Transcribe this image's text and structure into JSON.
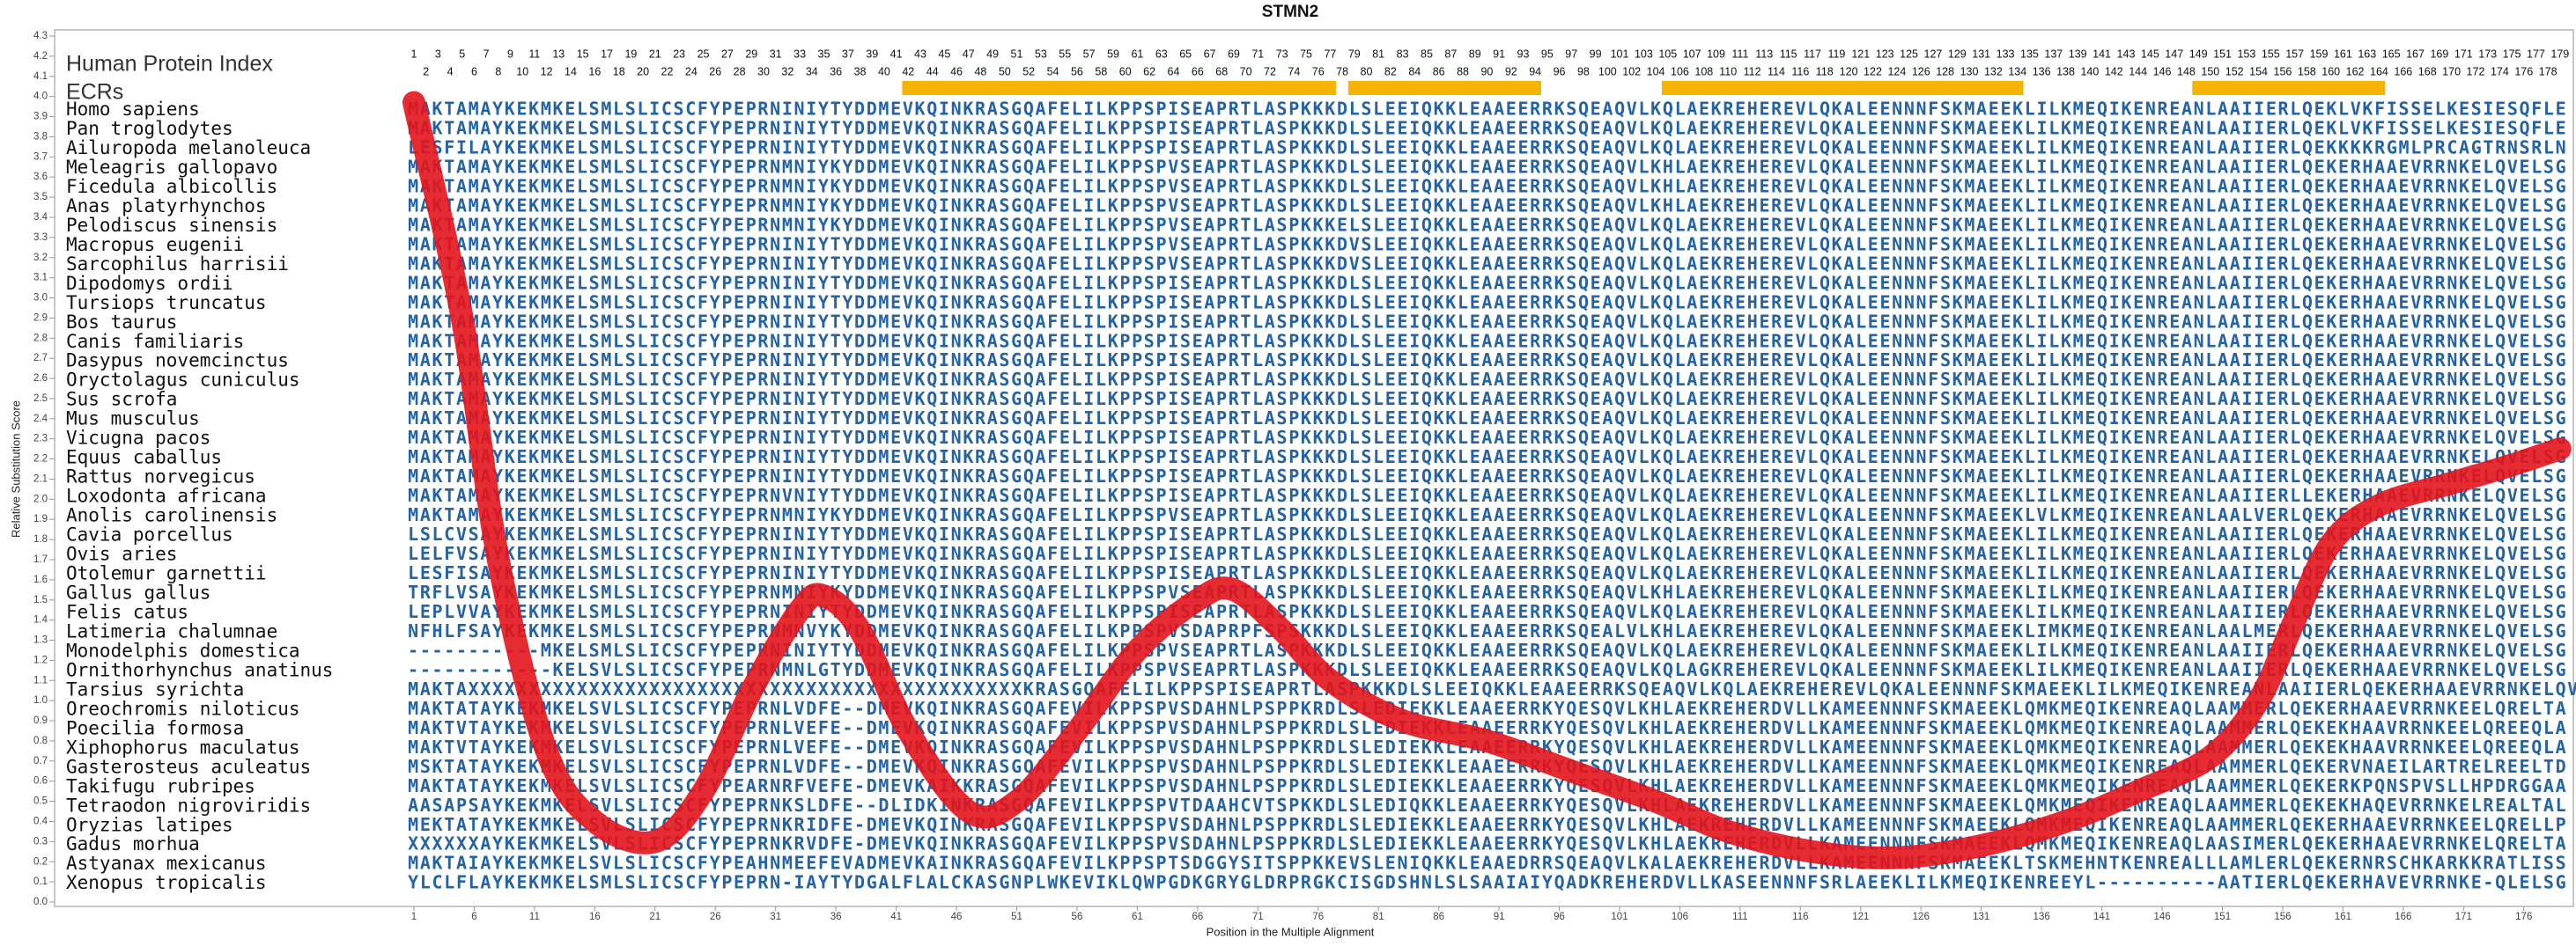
{
  "chart_data": {
    "type": "line",
    "title": "STMN2",
    "ylabel": "Relative Substitution Score",
    "xlabel": "Position in the Multiple Alignment",
    "ylim": [
      0,
      4.3
    ],
    "yticks": [
      {
        "value": 0,
        "label": "0.0"
      },
      0.1,
      0.2,
      0.3,
      0.4,
      0.5,
      0.6,
      0.7,
      0.8,
      0.9,
      {
        "value": 1,
        "label": "1.0"
      },
      1.1,
      1.2,
      1.3,
      1.4,
      1.5,
      1.6,
      1.7,
      1.8,
      1.9,
      {
        "value": 2,
        "label": "2.0"
      },
      2.1,
      2.2,
      2.3,
      2.4,
      2.5,
      2.6,
      2.7,
      2.8,
      2.9,
      {
        "value": 3,
        "label": "3.0"
      },
      3.1,
      3.2,
      3.3,
      3.4,
      3.5,
      3.6,
      3.7,
      3.8,
      3.9,
      {
        "value": 4,
        "label": "4.0"
      },
      4.1,
      4.2,
      4.3
    ],
    "xlim": [
      1,
      179
    ],
    "xticks": [
      1,
      6,
      11,
      16,
      21,
      26,
      31,
      36,
      41,
      46,
      51,
      56,
      61,
      66,
      71,
      76,
      81,
      86,
      91,
      96,
      101,
      106,
      111,
      116,
      121,
      126,
      131,
      136,
      141,
      146,
      151,
      156,
      161,
      166,
      171,
      176
    ],
    "series": [
      {
        "color": "#e3141c",
        "x": [
          1,
          5,
          8,
          12,
          16,
          21,
          25,
          29,
          33,
          35,
          38,
          42,
          47,
          51,
          56,
          61,
          66,
          69,
          73,
          77,
          83,
          90,
          97,
          104,
          110,
          117,
          124,
          131,
          138,
          144,
          150,
          154,
          157,
          160,
          164,
          170,
          175,
          179
        ],
        "values": [
          3.97,
          2.9,
          1.7,
          0.75,
          0.4,
          0.3,
          0.55,
          1.05,
          1.45,
          1.52,
          1.35,
          0.85,
          0.45,
          0.5,
          0.85,
          1.25,
          1.5,
          1.55,
          1.35,
          1.1,
          0.9,
          0.8,
          0.65,
          0.5,
          0.35,
          0.25,
          0.22,
          0.28,
          0.4,
          0.55,
          0.72,
          1.0,
          1.4,
          1.78,
          1.97,
          2.08,
          2.17,
          2.25
        ]
      }
    ],
    "alignment": {
      "index_label": "Human Protein Index",
      "ecr_label": "ECRs",
      "ecr_color": "#f5b400",
      "human_index": [
        1,
        2,
        3,
        4,
        5,
        6,
        7,
        8,
        9,
        10,
        11,
        12,
        13,
        14,
        15,
        16,
        17,
        18,
        19,
        20,
        21,
        22,
        23,
        24,
        25,
        26,
        27,
        28,
        29,
        30,
        31,
        32,
        33,
        34,
        35,
        36,
        37,
        38,
        39,
        40,
        41,
        42,
        43,
        44,
        45,
        46,
        47,
        48,
        49,
        50,
        51,
        52,
        53,
        54,
        55,
        56,
        57,
        58,
        59,
        60,
        61,
        62,
        63,
        64,
        65,
        66,
        67,
        68,
        69,
        70,
        71,
        72,
        73,
        74,
        75,
        76,
        77,
        78,
        79,
        80,
        81,
        82,
        83,
        84,
        85,
        86,
        87,
        88,
        89,
        90,
        91,
        92,
        93,
        94,
        95,
        96,
        97,
        98,
        99,
        100,
        101,
        102,
        103,
        104,
        105,
        106,
        107,
        108,
        109,
        110,
        111,
        112,
        113,
        114,
        115,
        116,
        117,
        118,
        119,
        120,
        121,
        122,
        123,
        124,
        125,
        126,
        127,
        128,
        129,
        130,
        131,
        132,
        133,
        134,
        135,
        136,
        137,
        138,
        139,
        140,
        141,
        142,
        143,
        144,
        145,
        146,
        147,
        148,
        149,
        150,
        151,
        152,
        153,
        154,
        155,
        156,
        157,
        158,
        159,
        160,
        161,
        162,
        163,
        164,
        165,
        166,
        167,
        168,
        169,
        170,
        171,
        172,
        173,
        174,
        175,
        176,
        177,
        178,
        179
      ],
      "ecrs": [
        [
          42,
          77
        ],
        [
          79,
          94
        ],
        [
          105,
          134
        ],
        [
          149,
          164
        ]
      ],
      "rows": [
        {
          "species": "Homo sapiens",
          "sequence": "MAKTAMAYKEKMKELSMLSLICSCFYPEPRNINIYTYDDMEVKQINKRASGQAFELILKPPSPISEAPRTLASPKKKDLSLEEIQKKLEAAEERRKSQEAQVLKQLAEKREHEREVLQKALEENNNFSKMAEEKLILKMEQIKENREANLAAIIERLQEKLVKFISSELKESIESQFLE"
        },
        {
          "species": "Pan troglodytes",
          "sequence": "MAKTAMAYKEKMKELSMLSLICSCFYPEPRNINIYTYDDMEVKQINKRASGQAFELILKPPSPISEAPRTLASPKKKDLSLEEIQKKLEAAEERRKSQEAQVLKQLAEKREHEREVLQKALEENNNFSKMAEEKLILKMEQIKENREANLAAIIERLQEKLVKFISSELKESIESQFLE"
        },
        {
          "species": "Ailuropoda melanoleuca",
          "sequence": "LESFILAYKEKMKELSMLSLICSCFYPEPRNINIYTYDDMEVKQINKRASGQAFELILKPPSPISEAPRTLASPKKKDLSLEEIQKKLEAAEERRKSQEAQVLKQLAEKREHEREVLQKALEENNNFSKMAEEKLILKMEQIKENREANLAAIIERLQEKKKKRGMLPRCAGTRNSRLN"
        },
        {
          "species": "Meleagris gallopavo",
          "sequence": "MAKTAMAYKEKMKELSMLSLICSCFYPEPRNMNIYKYDDMEVKQINKRASGQAFELILKPPSPVSEAPRTLASPKKKDLSLEEIQKKLEAAEERRKSQEAQVLKHLAEKREHEREVLQKALEENNNFSKMAEEKLILKMEQIKENREANLAAIIERLQEKERHAAEVRRNKELQVELSG"
        },
        {
          "species": "Ficedula albicollis",
          "sequence": "MAKTAMAYKEKMKELSMLSLICSCFYPEPRNMNIYKYDDMEVKQINKRASGQAFELILKPPSPVSEAPRTLASPKKKDLSLEEIQKKLEAAEERRKSQEAQVLKHLAEKREHEREVLQKALEENNNFSKMAEEKLILKMEQIKENREANLAAIIERLQEKERHAAEVRRNKELQVELSG"
        },
        {
          "species": "Anas platyrhynchos",
          "sequence": "MAKTAMAYKEKMKELSMLSLICSCFYPEPRNMNIYKYDDMEVKQINKRASGQAFELILKPPSPVSEAPRTLASPKKKDLSLEEIQKKLEAAEERRKSQEAQVLKHLAEKREHEREVLQKALEENNNFSKMAEEKLILKMEQIKENREANLAAIIERLQEKERHAAEVRRNKELQVELSG"
        },
        {
          "species": "Pelodiscus sinensis",
          "sequence": "MAKTAMAYKEKMKELSMLSLICSCFYPEPRNMNIYKYDDMEVKQINKRASGQAFELILKPPSPVSEAPRTLASPKKKELSLEEIQKKLEAAEERRKSQEAQVLKQLAEKREHEREVLQKALEENNNFSKMAEEKLILKMEQIKENREANLAAIIERLQEKERHAAEVRRNKELQVELSG"
        },
        {
          "species": "Macropus eugenii",
          "sequence": "MAKTAMAYKEKMKELSMLSLICSCFYPEPRNINIYTYDDMEVKQINKRASGQAFELILKPPSPVSEAPRTLASPKKKDVSLEEIQKKLEAAEERRKSQEAQVLKQLAEKREHEREVLQKALEENNNFSKMAEEKLILKMEQIKENREANLAAIIERLQEKERHAAEVRRNKELQVELSG"
        },
        {
          "species": "Sarcophilus harrisii",
          "sequence": "MAKTAMAYKEKMKELSMLSLICSCFYPEPRNINIYTYDDMEVKQINKRASGQAFELILKPPSPVSEAPRTLASPKKKDVSLEEIQKKLEAAEERRKSQEAQVLKQLAEKREHEREVLQKALEENNNFSKMAEEKLILKMEQIKENREANLAAIIERLQEKERHAAEVRRNKELQVELSG"
        },
        {
          "species": "Dipodomys ordii",
          "sequence": "MAKTAMAYKEKMKELSMLSLICSCFYPEPRNINIYTYDDMEVKQINKRASGQAFELILKPPSPISEAPRTLASPKKKDLSLEEIQKKLEAAEERRKSQEAQVLKQLAEKREHEREVLQKALEENNNFSKMAEEKLILKMEQIKENREANLAAIIERLQEKERHAAEVRRNKELQVELSG"
        },
        {
          "species": "Tursiops truncatus",
          "sequence": "MAKTAMAYKEKMKELSMLSLICSCFYPEPRNINIYTYDDMEVKQINKRASGQAFELILKPPSPISEAPRTLASPKKKDLSLEEIQKKLEAAEERRKSQEAQVLKQLAEKREHEREVLQKALEENNNFSKMAEEKLILKMEQIKENREANLAAIIERLQEKERHAAEVRRNKELQVELSG"
        },
        {
          "species": "Bos taurus",
          "sequence": "MAKTAMAYKEKMKELSMLSLICSCFYPEPRNINIYTYDDMEVKQINKRASGQAFELILKPPSPISEAPRTLASPKKKDLSLEEIQKKLEAAEERRKSQEAQVLKQLAEKREHEREVLQKALEENNNFSKMAEEKLILKMEQIKENREANLAAIIERLQEKERHAAEVRRNKELQVELSG"
        },
        {
          "species": "Canis familiaris",
          "sequence": "MAKTAMAYKEKMKELSMLSLICSCFYPEPRNINIYTYDDMEVKQINKRASGQAFELILKPPSPISEAPRTLASPKKKDLSLEEIQKKLEAAEERRKSQEAQVLKQLAEKREHEREVLQKALEENNNFSKMAEEKLILKMEQIKENREANLAAIIERLQEKERHAAEVRRNKELQVELSG"
        },
        {
          "species": "Dasypus novemcinctus",
          "sequence": "MAKTAMAYKEKMKELSMLSLICSCFYPEPRNINIYTYDDMEVKQINKRASGQAFELILKPPSPISEAPRTLASPKKKDLSLEEIQKKLEAAEERRKSQEAQVLKQLAEKREHEREVLQKALEENNNFSKMAEEKLILKMEQIKENREANLAAIIERLQEKERHAAEVRRNKELQVELSG"
        },
        {
          "species": "Oryctolagus cuniculus",
          "sequence": "MAKTAMAYKEKMKELSMLSLICSCFYPEPRNINIYTYDDMEVKQINKRASGQAFELILKPPSPISEAPRTLASPKKKDLSLEEIQKKLEAAEERRKSQEAQVLKQLAEKREHEREVLQKALEENNNFSKMAEEKLILKMEQIKENREANLAAIIERLQEKERHAAEVRRNKELQVELSG"
        },
        {
          "species": "Sus scrofa",
          "sequence": "MAKTAMAYKEKMKELSMLSLICSCFYPEPRNINIYTYDDMEVKQINKRASGQAFELILKPPSPISEAPRTLASPKKKDLSLEEIQKKLEAAEERRKSQEAQVLKQLAEKREHEREVLQKALEENNNFSKMAEEKLILKMEQIKENREANLAAIIERLQEKERHAAEVRRNKELQVELSG"
        },
        {
          "species": "Mus musculus",
          "sequence": "MAKTAMAYKEKMKELSMLSLICSCFYPEPRNINIYTYDDMEVKQINKRASGQAFELILKPPSPISEAPRTLASPKKKDLSLEEIQKKLEAAEERRKSQEAQVLKQLAEKREHEREVLQKALEENNNFSKMAEEKLILKMEQIKENREANLAAIIERLQEKERHAAEVRRNKELQVELSG"
        },
        {
          "species": "Vicugna pacos",
          "sequence": "MAKTAMAYKEKMKELSMLSLICSCFYPEPRNINIYTYDDMEVKQINKRASGQAFELILKPPSPISEAPRTLASPKKKDLSLEEIQKKLEAAEERRKSQEAQVLKQLAEKREHEREVLQKALEENNNFSKMAEEKLILKMEQIKENREANLAAIIERLQEKERHAAEVRRNKELQVELSG"
        },
        {
          "species": "Equus caballus",
          "sequence": "MAKTAMAYKEKMKELSMLSLICSCFYPEPRNINIYTYDDMEVKQINKRASGQAFELILKPPSPISEAPRTLASPKKKDLSLEEIQKKLEAAEERRKSQEAQVLKQLAEKREHEREVLQKALEENNNFSKMAEEKLILKMEQIKENREANLAAIIERLQEKERHAAEVRRNKELQVELSG"
        },
        {
          "species": "Rattus norvegicus",
          "sequence": "MAKTAMAYKEKMKELSMLSLICSCFYPEPRNINIYTYDDMEVKQINKRASGQAFELILKPPSPISEAPRTLASPKKKDLSLEEIQKKLEAAEERRKSQEAQVLKQLAEKREHEREVLQKALEENNNFSKMAEEKLILKMEQIKENREANLAAIIERLQEKERHAAEVRRNKELQVELSG"
        },
        {
          "species": "Loxodonta africana",
          "sequence": "MAKTAMAYKEKMKELSMLSLICSCFYPEPRNVNIYTYDDMEVKQINKRASGQAFELILKPPSPISEAPRTLASPKKKDLSLEEIQKKLEAAEERRKSQEAQVLKQLAEKREHEREVLQKALEENNNFSKMAEEKLILKMEQIKENREANLAAIIERLLEKERHAAEVRRNKELQVELSG"
        },
        {
          "species": "Anolis carolinensis",
          "sequence": "MAKTAMAYKEKMKELSMLSLICSCFYPEPRNMNIYKYDDMEVKQINKRASGQAFELILKPPSPVSEAPRTLASPKKKDLSLEEIQKKLEAAEERRKSQEAQVLKQLAEKREHEREVLQKALEENNNFSKMAEEKLVLKMEQIKENREANLAALVERLQEKERHAAEVRRNKELQVELSG"
        },
        {
          "species": "Cavia porcellus",
          "sequence": "LSLCVSAYKEKMKELSMLSLICSCFYPEPRNINIYTYDDMEVKQINKRASGQAFELILKPPSPISEAPRTLASPKKKDLSLEEIQKKLEAAEERRKSQEAQVLKQLAEKREHEREVLQKALEENNNFSKMAEEKLILKMEQIKENREANLAAIIERLQEKERHAAEVRRNKELQVELSG"
        },
        {
          "species": "Ovis aries",
          "sequence": "LELFVSAYKEKMKELSMLSLICSCFYPEPRNINIYTYDDMEVKQINKRASGQAFELILKPPSPISEAPRTLASPKKKDLSLEEIQKKLEAAEERRKSQEAQVLKQLAEKREHEREVLQKALEENNNFSKMAEEKLILKMEQIKENREANLAAIIERLQEKERHAAEVRRNKELQVELSG"
        },
        {
          "species": "Otolemur garnettii",
          "sequence": "LESFISAYKEKMKELSMLSLICSCFYPEPRNINIYTYDDMEVKQINKRASGQAFELILKPPSPISEAPRTLASPKKKDLSLEEIQKKLEAAEERRKSQEAQVLKQLAEKREHEREVLQKALEENNNFSKMAEEKLILKMEQIKENREANLAAIIERLQEKERHAAEVRRNKELQVELSG"
        },
        {
          "species": "Gallus gallus",
          "sequence": "TRFLVSAYKEKMKELSMLSLICSCFYPEPRNMNIYKYDDMEVKQINKRASGQAFELILKPPSPVSEAPRTLASPKKKDLSLEEIQKKLEAAEERRKSQEAQVLKHLAEKREHEREVLQKALEENNNFSKMAEEKLILKMEQIKENREANLAAIIERLQEKERHAAEVRRNKELQVELSG"
        },
        {
          "species": "Felis catus",
          "sequence": "LEPLVVAYKEKMKELSMLSLICSCFYPEPRNINIYTYDDMEVKQINKRASGQAFELILKPPSPISEAPRTLASPKKKDLSLEEIQKKLEAAEERRKSQEAQVLKQLAEKREHEREVLQKALEENNNFSKMAEEKLILKMEQIKENREANLAAIIERLQEKERHAAEVRRNKELQVELSG"
        },
        {
          "species": "Latimeria chalumnae",
          "sequence": "NFHLFSAYKEKMKELSMLSLICSCFYPEPRNMNVYKYDDMEVKQINKRASGQAFELILKPPSPVSDAPRPFSPSKKKDLSLEEIQKKLEAAEERRKSQEALVLKHLAEKREHEREVLQKALEENNNFSKMAEEKLIMKMEQIKENREANLAALMERLQEKERHAAEVRRNKELQVELSG"
        },
        {
          "species": "Monodelphis domestica",
          "sequence": "-----------MKELSMLSLICSCFYPEPRNINIYTYDDMEVKQINKRASGQAFELILKPPSPVSEAPRTLASPKKKDLSLEEIQKKLEAAEERRKSQEAQVLKQLAEKREHEREVLQKALEENNNFSKMAEEKLILKMEQIKENREANLAAIIERLQEKERHAAEVRRNKELQVELSG"
        },
        {
          "species": "Ornithorhynchus anatinus",
          "sequence": "------------KELSVLSLICSCFYPEPRNMNLGTYDDMEVKQINKRASGQAFELILKPPSPVSEAPRTLASPKKKDLSLEEIQKKLEAAEERRKSQEAQVLKQLAGKREHEREVLQKALEENNNFSKMAEEKLILKMEQIKENREANLAAIIERLQEKERHAAEVRRNKELQVELSG"
        },
        {
          "species": "Tarsius syrichta",
          "sequence": "MAKTAXXXXXXXXXXXXXXXXXXXXXXXXXXXXXXXXXXXXXXXXXXXXXXKRASGQAFELILKPPSPISEAPRTLASPKKKDLSLEEIQKKLEAAEERRKSQEAQVLKQLAEKREHEREVLQKALEENNNFSKMAEEKLILKMEQIKENREANLAAIIERLQEKERHAAEVRRNKELQVELSG"
        },
        {
          "species": "Oreochromis niloticus",
          "sequence": "MAKTATAYKEKMKELSVLSLICSCFYPEPRNLVDFE--DMEVKQINKRASGQAFEVILKPPSPVSDAHNLPSPPKRDLSLEDIEKKLEAAEERRKYQESQVLKHLAEKREHERDVLLKAMEENNNFSKMAEEKLQMKMEQIKENREAQLAAMMERLQEKERHAAEVRRNKEELQRELTA"
        },
        {
          "species": "Poecilia formosa",
          "sequence": "MAKTVTAYKEKMKELSVLSLICSCFYPEPRNLVEFE--DMEVKQINKRASGQAFEVILKPPSPVSDAHNLPSPPKRDLSLEDIEKKLEAAEERRKYQESQVLKHLAEKREHERDVLLKAMEENNNFSKMAEEKLQMKMEQIKENREAQLAAMMERLQEKEKHAAVRRNKEELQREEQLA"
        },
        {
          "species": "Xiphophorus maculatus",
          "sequence": "MAKTVTAYKEKMKELSVLSLICSCFYPEPRNLVEFE--DMEVKQINKRASGQAFEVILKPPSPVSDAHNLPSPPKRDLSLEDIEKKLEAAEERRKYQESQVLKHLAEKREHERDVLLKAMEENNNFSKMAEEKLQMKMEQIKENREAQLAAMMERLQEKEKHAAVRRNKEELQREEQLA"
        },
        {
          "species": "Gasterosteus aculeatus",
          "sequence": "MSKTATAYKEKMKELSVLSLICSCFYPEPRNLVDFE--DMEVKQINKRASGQAFEVILKPPSPVSDAHNLPSPPKRDLSLEDIEKKLEAAEERRKYQESQVLKHLAEKREHERDVLLKAMEENNNFSKMAEEKLQMKMEQIKENREAQLAAMMERLQEKERVNAEILARTRELREELTD"
        },
        {
          "species": "Takifugu rubripes",
          "sequence": "MAKTATAYKEKMKELSVLSLICSCFYPEARNRFVEFE-DMEVKAIKKRASGQAFEVILKPPSPVSDAHNLPSPPKRDLSLEDIEKKLEAAEERRKYQESQVLKHLAEKREHERDVLLKAMEENNNFSKMAEEKLQMKMEQIKENREAQLAAMMERLQEKERKPQNSPVSLLHPDRGGAA"
        },
        {
          "species": "Tetraodon nigroviridis",
          "sequence": "AASAPSAYKEKMKELSVLSLICSCFYPEPRNKSLDFE--DLIDKINKRASGQAFEVILKPPSPVTDAAHCVTSPKKDLSLEDIQKKLEAAEERRKYQESQVLKHLAEKREHERDVLLKAMEENNNFSKMAEEKLQMKMEQIKENREAQLAAMMERLQEKEKHAQEVRRNKELREALTAL"
        },
        {
          "species": "Oryzias latipes",
          "sequence": "MEKTATAYKEKMKELSVLSLICSCFYPEPRNKRIDFE-DMEVKQINKRASGQAFEVILKPPSPVSDAHNLPSPPKRDLSLEDIEKKLEAAEERRKYQESQVLKHLAEKREHERDVLLKAMEENNNFSKMAEEKLQMKMEQIKENREAQLAAMMERLQEKERHAAEVRRNKEELQRELLP"
        },
        {
          "species": "Gadus morhua",
          "sequence": "XXXXXXAYKEKMKELSVLSLICSCFYPEPRNKRVDFE-DMEVKQINKRASGQAFEVILKPPSPVSDAHNLPSPPKRDLSLEDIEKKLEAAEERRKYQESQVLKHLAEKREHERDVLLKAMEENNNFSKMAEEKLQMKMEQIKENREAQLAASIMERLQEKERHAAEVRRNKELQRELTA"
        },
        {
          "species": "Astyanax mexicanus",
          "sequence": "MAKTAIAYKEKMKELSVLSLICSCFYPEAHNMEEFEVADMEVKAINKRASGQAFEVILKPPSPTSDGGYSITSPPKKEVSLENIQKKLEAAEDRRSQEAQVLKALAEKREHERDVLLKAMEENNNFSKMAEEKLTSKMEHNTKENREALLLAMLERLQEKERNRSCHKARKKRATLISS"
        },
        {
          "species": "Xenopus tropicalis",
          "sequence": "YLCLFLAYKEKMKELSMLSLICSCFYPEPRN-IAYTYDGALFLALCKASGNPLWKEVIKLQWPGDKGRYGLDRPRGKCISGDSHNLSLSAAIAIYQADKREHERDVLLKASEENNNFSRLAEEKLILKMEQIKENREEYL----------AATIERLQEKERHAVEVRRNKE-QLELSG"
        }
      ]
    }
  }
}
